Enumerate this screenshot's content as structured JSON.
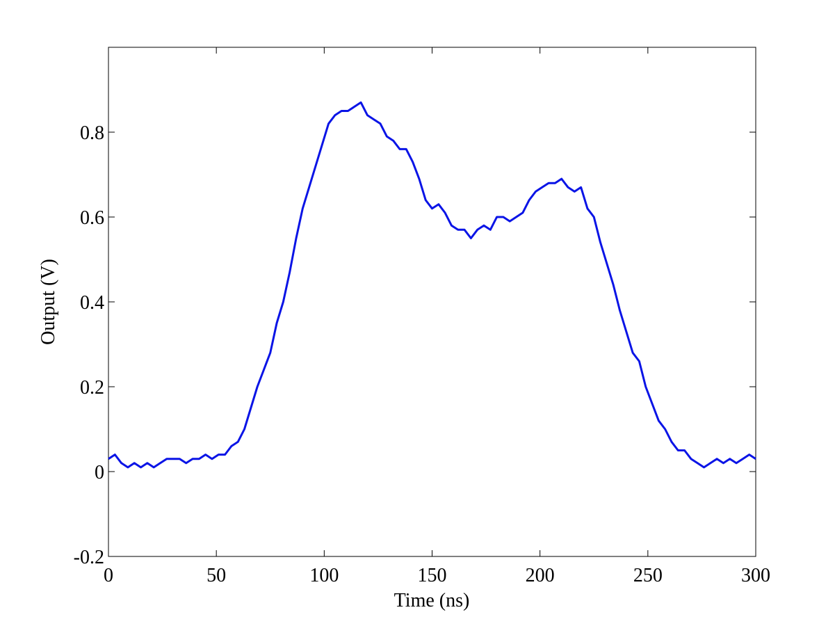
{
  "chart_data": {
    "type": "line",
    "x_label": "Time (ns)",
    "y_label": "Output (V)",
    "x": [
      0,
      3,
      6,
      9,
      12,
      15,
      18,
      21,
      24,
      27,
      30,
      33,
      36,
      39,
      42,
      45,
      48,
      51,
      54,
      57,
      60,
      63,
      66,
      69,
      72,
      75,
      78,
      81,
      84,
      87,
      90,
      93,
      96,
      99,
      102,
      105,
      108,
      111,
      114,
      117,
      120,
      123,
      126,
      129,
      132,
      135,
      138,
      141,
      144,
      147,
      150,
      153,
      156,
      159,
      162,
      165,
      168,
      171,
      174,
      177,
      180,
      183,
      186,
      189,
      192,
      195,
      198,
      201,
      204,
      207,
      210,
      213,
      216,
      219,
      222,
      225,
      228,
      231,
      234,
      237,
      240,
      243,
      246,
      249,
      252,
      255,
      258,
      261,
      264,
      267,
      270,
      273,
      276,
      279,
      282,
      285,
      288,
      291,
      294,
      297,
      300
    ],
    "series": [
      {
        "name": "Output",
        "color": "#0a14e6",
        "values": [
          0.03,
          0.04,
          0.02,
          0.01,
          0.02,
          0.01,
          0.02,
          0.01,
          0.02,
          0.03,
          0.03,
          0.03,
          0.02,
          0.03,
          0.03,
          0.04,
          0.03,
          0.04,
          0.04,
          0.06,
          0.07,
          0.1,
          0.15,
          0.2,
          0.24,
          0.28,
          0.35,
          0.4,
          0.47,
          0.55,
          0.62,
          0.67,
          0.72,
          0.77,
          0.82,
          0.84,
          0.85,
          0.85,
          0.86,
          0.87,
          0.84,
          0.83,
          0.82,
          0.79,
          0.78,
          0.76,
          0.76,
          0.73,
          0.69,
          0.64,
          0.62,
          0.63,
          0.61,
          0.58,
          0.57,
          0.57,
          0.55,
          0.57,
          0.58,
          0.57,
          0.6,
          0.6,
          0.59,
          0.6,
          0.61,
          0.64,
          0.66,
          0.67,
          0.68,
          0.68,
          0.69,
          0.67,
          0.66,
          0.67,
          0.62,
          0.6,
          0.54,
          0.49,
          0.44,
          0.38,
          0.33,
          0.28,
          0.26,
          0.2,
          0.16,
          0.12,
          0.1,
          0.07,
          0.05,
          0.05,
          0.03,
          0.02,
          0.01,
          0.02,
          0.03,
          0.02,
          0.03,
          0.02,
          0.03,
          0.04,
          0.03
        ]
      }
    ],
    "xlim": [
      0,
      300
    ],
    "xticks": [
      0,
      50,
      100,
      150,
      200,
      250,
      300
    ],
    "ylim": [
      -0.2,
      1
    ],
    "yticks": [
      -0.2,
      0,
      0.2,
      0.4,
      0.6,
      0.8
    ],
    "grid": false
  }
}
